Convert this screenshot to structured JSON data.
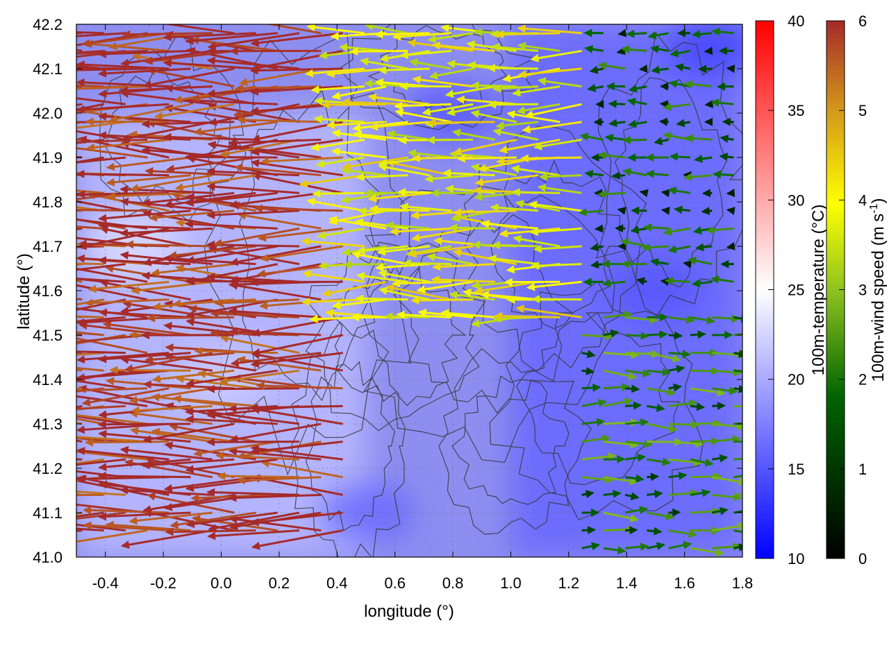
{
  "chart_data": {
    "type": "heatmap",
    "overlays": [
      "wind-vectors",
      "terrain-contours"
    ],
    "xlabel": "longitude (°)",
    "ylabel": "latitude (°)",
    "xlim": [
      -0.5,
      1.8
    ],
    "ylim": [
      41.0,
      42.2
    ],
    "x_ticks": [
      "-0.4",
      "-0.2",
      "0.0",
      "0.2",
      "0.4",
      "0.6",
      "0.8",
      "1.0",
      "1.2",
      "1.4",
      "1.6",
      "1.8"
    ],
    "y_ticks": [
      "41.0",
      "41.1",
      "41.2",
      "41.3",
      "41.4",
      "41.5",
      "41.6",
      "41.7",
      "41.8",
      "41.9",
      "42.0",
      "42.1",
      "42.2"
    ],
    "grid": true,
    "temperature_colorbar": {
      "label": "100m-temperature (°C)",
      "range": [
        10,
        40
      ],
      "ticks": [
        "10",
        "15",
        "20",
        "25",
        "30",
        "35",
        "40"
      ],
      "colors": [
        "#0000ff",
        "#ffffff",
        "#ff0000"
      ]
    },
    "wind_colorbar": {
      "label_main": "100m-wind speed (m s",
      "label_sup": "-1",
      "label_end": ")",
      "range": [
        0,
        6
      ],
      "ticks": [
        "0",
        "1",
        "2",
        "3",
        "4",
        "5",
        "6"
      ],
      "colors": [
        "#000000",
        "#006400",
        "#8fc31f",
        "#ffff00",
        "#d49a1a",
        "#a52a2a"
      ]
    },
    "wind_regions": [
      {
        "name": "western-high-wind",
        "lon": [
          -0.5,
          0.45
        ],
        "lat": [
          41.05,
          42.2
        ],
        "speed": 6,
        "direction_deg": 180
      },
      {
        "name": "central-moderate-wind",
        "lon": [
          0.3,
          1.3
        ],
        "lat": [
          41.5,
          42.2
        ],
        "speed": 3.5,
        "direction_deg": 180
      },
      {
        "name": "northeast-calm",
        "lon": [
          1.0,
          1.8
        ],
        "lat": [
          41.6,
          42.2
        ],
        "speed": 1,
        "direction_deg": 180
      },
      {
        "name": "southeast-light-easterly",
        "lon": [
          1.2,
          1.8
        ],
        "lat": [
          41.0,
          41.55
        ],
        "speed": 1.5,
        "direction_deg": 0
      }
    ],
    "temperature_regions": [
      {
        "name": "west-warm",
        "lon": [
          -0.5,
          0.5
        ],
        "lat": [
          41.0,
          42.0
        ],
        "temperature": 21
      },
      {
        "name": "east-cool",
        "lon": [
          1.0,
          1.8
        ],
        "lat": [
          41.0,
          42.2
        ],
        "temperature": 16
      }
    ]
  }
}
